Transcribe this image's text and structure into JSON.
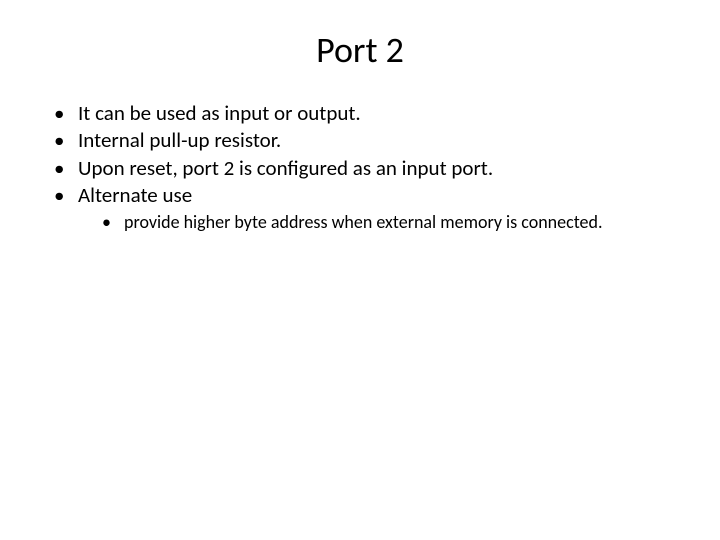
{
  "slide": {
    "title": "Port 2",
    "title_fontsize": 36,
    "title_color": "#000000",
    "bullets": [
      "It can be used as input or output.",
      "Internal pull-up resistor.",
      "Upon reset, port 2 is configured as an input port.",
      "Alternate use"
    ],
    "bullet_fontsize": 21,
    "bullet_color": "#000000",
    "sub_bullets": [
      "provide higher byte address when external memory is connected."
    ],
    "sub_bullet_fontsize": 18,
    "sub_bullet_color": "#000000",
    "background_color": "#ffffff",
    "font_family": "Calibri"
  }
}
